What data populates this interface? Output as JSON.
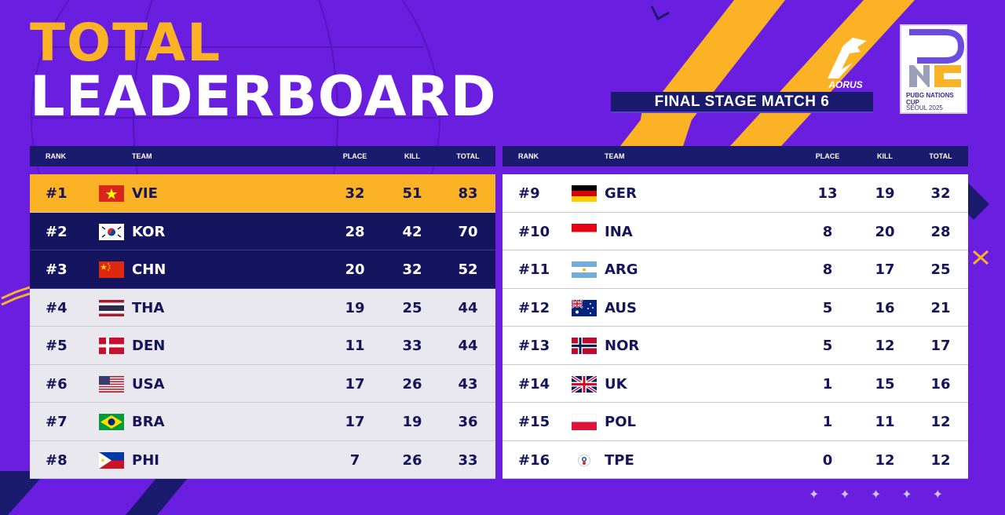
{
  "header": {
    "title_line1": "TOTAL",
    "title_line2": "LEADERBOARD",
    "stage": "FINAL STAGE MATCH 6",
    "sponsor": "AORUS",
    "event_name": "PUBG NATIONS CUP",
    "event_sub": "SEOUL 2025"
  },
  "columns": {
    "rank": "RANK",
    "team": "TEAM",
    "place": "PLACE",
    "kill": "KILL",
    "total": "TOTAL"
  },
  "colors": {
    "background": "#6a1fe0",
    "accent_gold": "#fbb224",
    "navy": "#15145e"
  },
  "left_table": [
    {
      "rank": "#1",
      "team": "VIE",
      "place": "32",
      "kill": "51",
      "total": "83",
      "flag": "vietnam-flag-icon"
    },
    {
      "rank": "#2",
      "team": "KOR",
      "place": "28",
      "kill": "42",
      "total": "70",
      "flag": "korea-flag-icon"
    },
    {
      "rank": "#3",
      "team": "CHN",
      "place": "20",
      "kill": "32",
      "total": "52",
      "flag": "china-flag-icon"
    },
    {
      "rank": "#4",
      "team": "THA",
      "place": "19",
      "kill": "25",
      "total": "44",
      "flag": "thailand-flag-icon"
    },
    {
      "rank": "#5",
      "team": "DEN",
      "place": "11",
      "kill": "33",
      "total": "44",
      "flag": "denmark-flag-icon"
    },
    {
      "rank": "#6",
      "team": "USA",
      "place": "17",
      "kill": "26",
      "total": "43",
      "flag": "usa-flag-icon"
    },
    {
      "rank": "#7",
      "team": "BRA",
      "place": "17",
      "kill": "19",
      "total": "36",
      "flag": "brazil-flag-icon"
    },
    {
      "rank": "#8",
      "team": "PHI",
      "place": "7",
      "kill": "26",
      "total": "33",
      "flag": "philippines-flag-icon"
    }
  ],
  "right_table": [
    {
      "rank": "#9",
      "team": "GER",
      "place": "13",
      "kill": "19",
      "total": "32",
      "flag": "germany-flag-icon"
    },
    {
      "rank": "#10",
      "team": "INA",
      "place": "8",
      "kill": "20",
      "total": "28",
      "flag": "indonesia-flag-icon"
    },
    {
      "rank": "#11",
      "team": "ARG",
      "place": "8",
      "kill": "17",
      "total": "25",
      "flag": "argentina-flag-icon"
    },
    {
      "rank": "#12",
      "team": "AUS",
      "place": "5",
      "kill": "16",
      "total": "21",
      "flag": "australia-flag-icon"
    },
    {
      "rank": "#13",
      "team": "NOR",
      "place": "5",
      "kill": "12",
      "total": "17",
      "flag": "norway-flag-icon"
    },
    {
      "rank": "#14",
      "team": "UK",
      "place": "1",
      "kill": "15",
      "total": "16",
      "flag": "uk-flag-icon"
    },
    {
      "rank": "#15",
      "team": "POL",
      "place": "1",
      "kill": "11",
      "total": "12",
      "flag": "poland-flag-icon"
    },
    {
      "rank": "#16",
      "team": "TPE",
      "place": "0",
      "kill": "12",
      "total": "12",
      "flag": "chinese-taipei-flag-icon"
    }
  ]
}
